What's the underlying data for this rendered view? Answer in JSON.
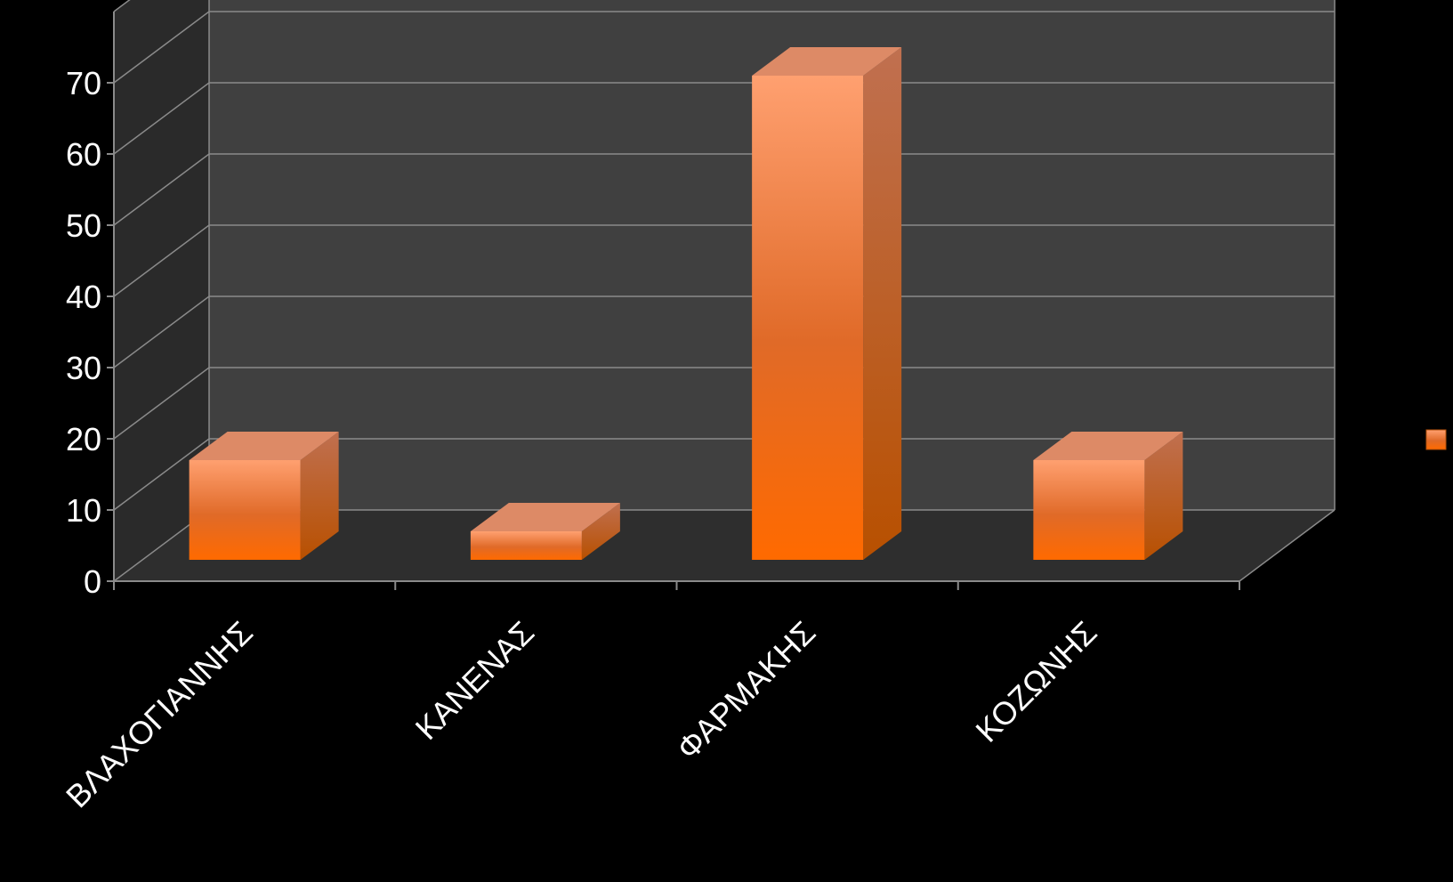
{
  "chart_data": {
    "type": "bar",
    "style": "3d-column",
    "categories": [
      "ΒΛΑΧΟΓΙΑΝΝΗΣ",
      "ΚΑΝΕΝΑΣ",
      "ΦΑΡΜΑΚΗΣ",
      "ΚΟΖΩΝΗΣ"
    ],
    "series": [
      {
        "values": [
          14,
          4,
          68,
          14
        ]
      }
    ],
    "ylim": [
      0,
      80
    ],
    "yticks": [
      0,
      10,
      20,
      30,
      40,
      50,
      60,
      70
    ],
    "yticks_labels": [
      "0",
      "10",
      "20",
      "30",
      "40",
      "50",
      "60",
      "70"
    ],
    "title": "",
    "xlabel": "",
    "ylabel": "",
    "grid": true,
    "legend_position": "right",
    "colors": {
      "background": "#000000",
      "back_wall": "#404040",
      "side_wall": "#2a2a2a",
      "floor": "#2e2e2e",
      "gridline": "#8a8a8a",
      "bar_top": "#ffa070",
      "bar_bottom": "#ff6a00",
      "bar_side": "#b4500a",
      "bar_cap": "#dd8a66"
    }
  }
}
